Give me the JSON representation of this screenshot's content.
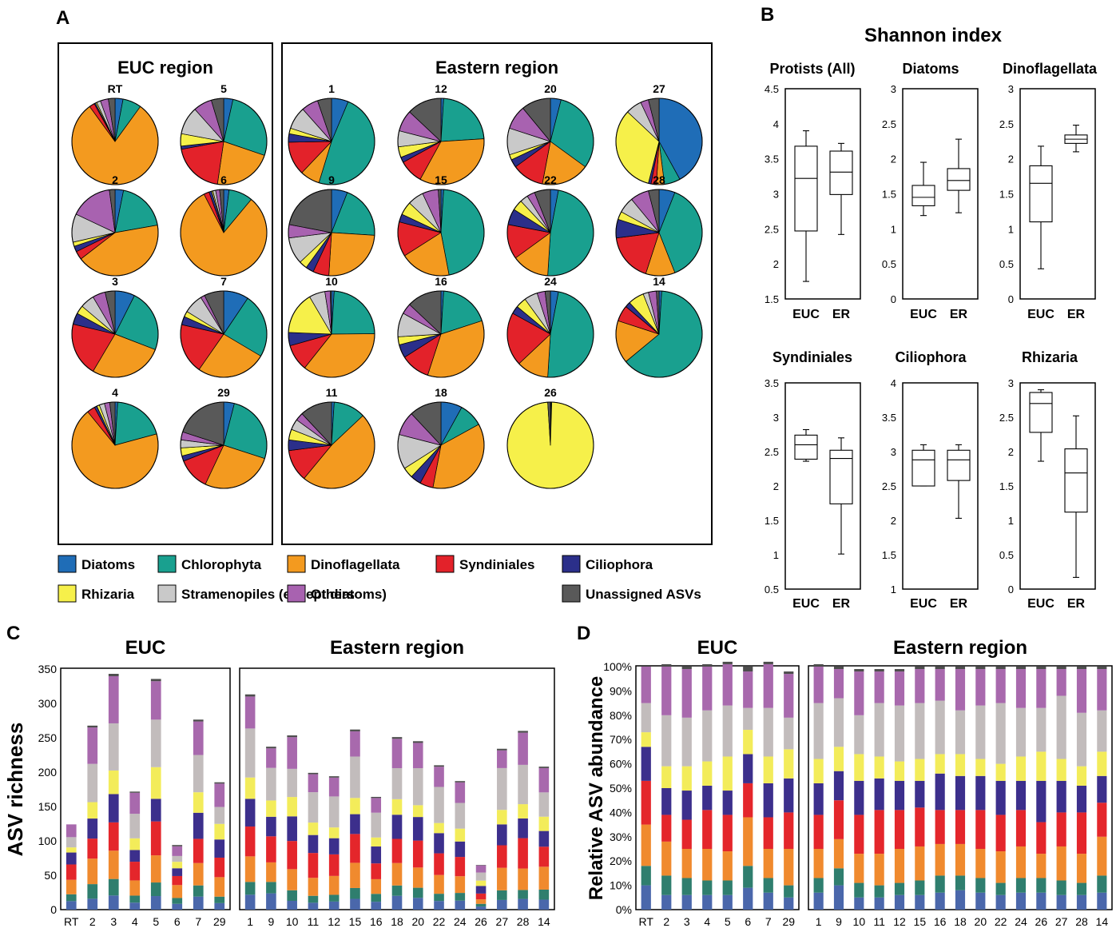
{
  "colors": {
    "Diatoms": "#1f6db7",
    "Chlorophyta": "#19a08f",
    "Dinoflagellata": "#f39a1f",
    "Syndiniales": "#e3222a",
    "Ciliophora": "#2b2f8a",
    "Rhizaria": "#f6f04a",
    "Stramenopiles": "#c9c9c9",
    "Others": "#a862b0",
    "Unassigned": "#595959"
  },
  "bar_colors": [
    "#4a67ab",
    "#2f7e6e",
    "#f08a2e",
    "#e4262b",
    "#3c2f8c",
    "#f3ec5a",
    "#c2bcbc",
    "#a869ad",
    "#4d4d4d"
  ],
  "panels": {
    "a": "A",
    "b": "B",
    "c": "C",
    "d": "D"
  },
  "chart_data": [
    {
      "type": "pie",
      "panel": "A",
      "categories": [
        "Diatoms",
        "Chlorophyta",
        "Dinoflagellata",
        "Syndiniales",
        "Ciliophora",
        "Rhizaria",
        "Stramenopiles",
        "Others",
        "Unassigned"
      ],
      "legend": [
        "Diatoms",
        "Chlorophyta",
        "Dinoflagellata",
        "Syndiniales",
        "Ciliophora",
        "Rhizaria",
        "Stramenopiles (except diatoms)",
        "Others",
        "Unassigned ASVs"
      ],
      "groups": [
        {
          "title": "EUC region",
          "stations": [
            {
              "label": "RT",
              "values": [
                3,
                7,
                80,
                2,
                0.5,
                0.5,
                1.5,
                3,
                2.5
              ]
            },
            {
              "label": "5",
              "values": [
                3,
                23,
                19,
                17,
                1,
                4,
                9,
                6,
                4
              ]
            },
            {
              "label": "2",
              "values": [
                3,
                18,
                40,
                3,
                2,
                1.5,
                10,
                15,
                2
              ]
            },
            {
              "label": "6",
              "values": [
                2,
                9,
                81,
                2,
                1,
                0.5,
                1,
                1.5,
                1.5
              ]
            },
            {
              "label": "3",
              "values": [
                7,
                22,
                26,
                19,
                4,
                3,
                5,
                4.5,
                3.5
              ]
            },
            {
              "label": "7",
              "values": [
                9,
                23,
                25,
                18,
                3,
                2,
                7,
                1.5,
                7
              ]
            },
            {
              "label": "4",
              "values": [
                1,
                20,
                69,
                3,
                1,
                1,
                2,
                2,
                2
              ]
            },
            {
              "label": "29",
              "values": [
                4,
                26,
                27,
                12,
                2,
                3,
                3,
                3,
                20
              ]
            }
          ]
        },
        {
          "title": "Eastern region",
          "stations": [
            {
              "label": "1",
              "values": [
                6,
                46,
                7,
                12,
                3,
                2,
                8,
                6,
                5
              ]
            },
            {
              "label": "12",
              "values": [
                1,
                23,
                34,
                9,
                2,
                4,
                6,
                8,
                13
              ]
            },
            {
              "label": "20",
              "values": [
                4,
                31,
                18,
                12,
                3,
                2,
                10,
                9,
                11
              ]
            },
            {
              "label": "27",
              "values": [
                42,
                6,
                3,
                2,
                1,
                33,
                6,
                3,
                4
              ]
            },
            {
              "label": "9",
              "values": [
                6,
                20,
                25,
                6,
                3,
                3,
                10,
                5,
                22
              ]
            },
            {
              "label": "15",
              "values": [
                1,
                46,
                19,
                13,
                3,
                5,
                6,
                6,
                1
              ]
            },
            {
              "label": "22",
              "values": [
                3,
                48,
                14,
                13,
                6,
                4,
                3,
                3,
                6
              ]
            },
            {
              "label": "28",
              "values": [
                6,
                38,
                11,
                18,
                7,
                3,
                6,
                7,
                4
              ]
            },
            {
              "label": "10",
              "values": [
                1,
                24,
                36,
                10,
                5,
                16,
                6,
                2,
                0.5
              ]
            },
            {
              "label": "16",
              "values": [
                1,
                19,
                35,
                11,
                5,
                3,
                9,
                4,
                13
              ]
            },
            {
              "label": "24",
              "values": [
                3,
                48,
                12,
                20,
                3,
                4,
                5,
                3,
                2
              ]
            },
            {
              "label": "14",
              "values": [
                1,
                63,
                16,
                6,
                2,
                6,
                2,
                3,
                1
              ]
            },
            {
              "label": "11",
              "values": [
                1,
                12,
                48,
                12,
                4,
                4,
                4,
                3,
                12
              ]
            },
            {
              "label": "18",
              "values": [
                8,
                9,
                36,
                5,
                4,
                4,
                13,
                9,
                12
              ]
            },
            {
              "label": "26",
              "values": [
                0.2,
                0.3,
                0,
                0,
                0,
                98.5,
                0,
                0,
                1
              ]
            }
          ]
        }
      ]
    },
    {
      "type": "box",
      "panel": "B",
      "title": "Shannon index",
      "x": [
        "EUC",
        "ER"
      ],
      "subplots": [
        {
          "title": "Protists (All)",
          "ylim": [
            1.5,
            4.5
          ],
          "ticks": [
            "4.5",
            "4",
            "3.5",
            "3",
            "2.5",
            "2",
            "1.5"
          ],
          "boxes": [
            {
              "min": 1.75,
              "q1": 2.47,
              "median": 3.22,
              "q3": 3.68,
              "max": 3.9
            },
            {
              "min": 2.42,
              "q1": 2.99,
              "median": 3.31,
              "q3": 3.61,
              "max": 3.72
            }
          ]
        },
        {
          "title": "Diatoms",
          "ylim": [
            0,
            3
          ],
          "ticks": [
            "3",
            "2.5",
            "2",
            "1.5",
            "1",
            "0.5",
            "0"
          ],
          "boxes": [
            {
              "min": 1.19,
              "q1": 1.33,
              "median": 1.45,
              "q3": 1.62,
              "max": 1.95
            },
            {
              "min": 1.23,
              "q1": 1.55,
              "median": 1.69,
              "q3": 1.86,
              "max": 2.28
            }
          ]
        },
        {
          "title": "Dinoflagellata",
          "ylim": [
            0,
            3
          ],
          "ticks": [
            "3",
            "2.5",
            "2",
            "1.5",
            "1",
            "0.5",
            "0"
          ],
          "boxes": [
            {
              "min": 0.43,
              "q1": 1.1,
              "median": 1.65,
              "q3": 1.9,
              "max": 2.18
            },
            {
              "min": 2.1,
              "q1": 2.22,
              "median": 2.28,
              "q3": 2.34,
              "max": 2.48
            }
          ]
        },
        {
          "title": "Syndiniales",
          "ylim": [
            0.5,
            3.5
          ],
          "ticks": [
            "3.5",
            "3",
            "2.5",
            "2",
            "1.5",
            "1",
            "0.5"
          ],
          "boxes": [
            {
              "min": 2.36,
              "q1": 2.39,
              "median": 2.6,
              "q3": 2.74,
              "max": 2.82
            },
            {
              "min": 1.01,
              "q1": 1.74,
              "median": 2.4,
              "q3": 2.52,
              "max": 2.7
            }
          ]
        },
        {
          "title": "Ciliophora",
          "ylim": [
            1,
            4
          ],
          "ticks": [
            "4",
            "3.5",
            "3",
            "2.5",
            "2",
            "1.5",
            "1"
          ],
          "boxes": [
            {
              "min": 2.5,
              "q1": 2.5,
              "median": 2.88,
              "q3": 3.02,
              "max": 3.1
            },
            {
              "min": 2.03,
              "q1": 2.58,
              "median": 2.88,
              "q3": 3.02,
              "max": 3.1
            }
          ]
        },
        {
          "title": "Rhizaria",
          "ylim": [
            0,
            3
          ],
          "ticks": [
            "3",
            "2.5",
            "2",
            "1.5",
            "1",
            "0.5",
            "0"
          ],
          "boxes": [
            {
              "min": 1.86,
              "q1": 2.28,
              "median": 2.7,
              "q3": 2.86,
              "max": 2.9
            },
            {
              "min": 0.17,
              "q1": 1.12,
              "median": 1.69,
              "q3": 2.04,
              "max": 2.52
            }
          ]
        }
      ]
    },
    {
      "type": "bar",
      "panel": "C",
      "stacked": true,
      "ylabel": "ASV richness",
      "ylim": [
        0,
        350
      ],
      "ticks": [
        "0",
        "50",
        "100",
        "150",
        "200",
        "250",
        "300",
        "350"
      ],
      "groups": [
        {
          "title": "EUC",
          "categories": [
            "RT",
            "2",
            "3",
            "4",
            "5",
            "6",
            "7",
            "29"
          ],
          "totals": [
            124,
            265,
            343,
            170,
            329,
            94,
            271,
            189
          ],
          "fractions": [
            [
              0.1,
              0.08,
              0.17,
              0.18,
              0.14,
              0.06,
              0.12,
              0.15,
              0.0
            ],
            [
              0.06,
              0.08,
              0.14,
              0.11,
              0.11,
              0.09,
              0.21,
              0.2,
              0.01
            ],
            [
              0.06,
              0.07,
              0.12,
              0.12,
              0.12,
              0.1,
              0.2,
              0.2,
              0.01
            ],
            [
              0.06,
              0.06,
              0.13,
              0.16,
              0.1,
              0.1,
              0.21,
              0.18,
              0.01
            ],
            [
              0.06,
              0.06,
              0.12,
              0.15,
              0.1,
              0.14,
              0.21,
              0.17,
              0.01
            ],
            [
              0.09,
              0.09,
              0.2,
              0.14,
              0.12,
              0.1,
              0.09,
              0.15,
              0.02
            ],
            [
              0.07,
              0.06,
              0.12,
              0.13,
              0.14,
              0.11,
              0.2,
              0.18,
              0.01
            ],
            [
              0.05,
              0.05,
              0.15,
              0.15,
              0.14,
              0.12,
              0.13,
              0.18,
              0.01
            ]
          ]
        },
        {
          "title": "Eastern region",
          "categories": [
            "1",
            "9",
            "10",
            "11",
            "12",
            "15",
            "16",
            "18",
            "20",
            "22",
            "24",
            "26",
            "27",
            "28",
            "14"
          ],
          "totals": [
            310,
            237,
            256,
            201,
            196,
            262,
            164,
            251,
            245,
            210,
            187,
            65,
            234,
            260,
            208
          ],
          "fractions": [
            [
              0.07,
              0.06,
              0.12,
              0.14,
              0.13,
              0.1,
              0.23,
              0.15,
              0.01
            ],
            [
              0.1,
              0.07,
              0.12,
              0.16,
              0.12,
              0.1,
              0.2,
              0.12,
              0.01
            ],
            [
              0.05,
              0.06,
              0.12,
              0.16,
              0.14,
              0.11,
              0.16,
              0.18,
              0.01
            ],
            [
              0.05,
              0.05,
              0.13,
              0.18,
              0.13,
              0.09,
              0.22,
              0.13,
              0.01
            ],
            [
              0.06,
              0.05,
              0.14,
              0.16,
              0.12,
              0.08,
              0.23,
              0.14,
              0.01
            ],
            [
              0.06,
              0.06,
              0.14,
              0.16,
              0.11,
              0.09,
              0.23,
              0.14,
              0.01
            ],
            [
              0.07,
              0.07,
              0.13,
              0.14,
              0.15,
              0.08,
              0.22,
              0.13,
              0.01
            ],
            [
              0.08,
              0.06,
              0.13,
              0.14,
              0.14,
              0.09,
              0.18,
              0.17,
              0.01
            ],
            [
              0.07,
              0.06,
              0.12,
              0.16,
              0.14,
              0.07,
              0.22,
              0.15,
              0.01
            ],
            [
              0.06,
              0.05,
              0.13,
              0.15,
              0.14,
              0.07,
              0.25,
              0.14,
              0.01
            ],
            [
              0.07,
              0.06,
              0.13,
              0.15,
              0.12,
              0.1,
              0.2,
              0.16,
              0.01
            ],
            [
              0.07,
              0.06,
              0.1,
              0.13,
              0.17,
              0.12,
              0.18,
              0.16,
              0.01
            ],
            [
              0.06,
              0.06,
              0.14,
              0.14,
              0.13,
              0.09,
              0.26,
              0.11,
              0.01
            ],
            [
              0.06,
              0.05,
              0.12,
              0.17,
              0.11,
              0.08,
              0.22,
              0.18,
              0.01
            ],
            [
              0.07,
              0.07,
              0.16,
              0.14,
              0.11,
              0.1,
              0.17,
              0.17,
              0.01
            ]
          ]
        }
      ]
    },
    {
      "type": "bar",
      "panel": "D",
      "stacked": true,
      "normalized": true,
      "ylabel": "Relative ASV abundance",
      "ylim": [
        0,
        100
      ],
      "ticks": [
        "0%",
        "10%",
        "20%",
        "30%",
        "40%",
        "50%",
        "60%",
        "70%",
        "80%",
        "90%",
        "100%"
      ],
      "groups": [
        {
          "title": "EUC",
          "categories": [
            "RT",
            "2",
            "3",
            "4",
            "5",
            "6",
            "7",
            "29"
          ]
        },
        {
          "title": "Eastern region",
          "categories": [
            "1",
            "9",
            "10",
            "11",
            "12",
            "15",
            "16",
            "18",
            "20",
            "22",
            "24",
            "26",
            "27",
            "28",
            "14"
          ]
        }
      ]
    }
  ]
}
